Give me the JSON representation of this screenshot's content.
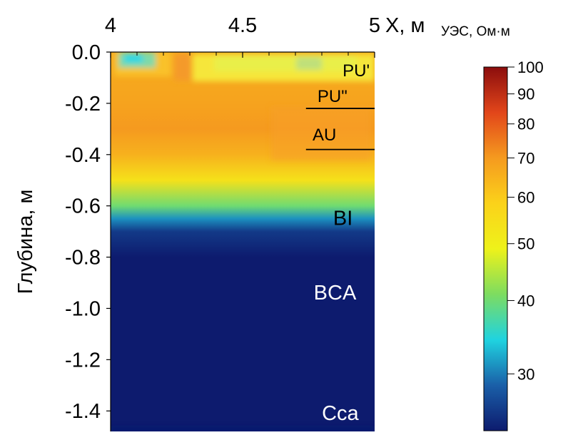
{
  "chart_data": {
    "type": "heatmap",
    "x_axis": {
      "label": "X, м",
      "range": [
        4,
        5
      ],
      "ticks": [
        4,
        4.5,
        5
      ],
      "tick_labels": [
        "4",
        "4.5",
        "5"
      ],
      "position": "top"
    },
    "y_axis": {
      "label": "Глубина, м",
      "range": [
        -1.48,
        0
      ],
      "ticks": [
        0,
        -0.2,
        -0.4,
        -0.6,
        -0.8,
        -1.0,
        -1.2,
        -1.4
      ],
      "tick_labels": [
        "0.0",
        "-0.2",
        "-0.4",
        "-0.6",
        "-0.8",
        "-1.0",
        "-1.2",
        "-1.4"
      ]
    },
    "colorbar": {
      "title": "УЭС, Ом·м",
      "scale": "log",
      "range": [
        24,
        100
      ],
      "ticks": [
        100,
        90,
        80,
        70,
        60,
        50,
        40,
        30
      ],
      "tick_labels": [
        "100",
        "90",
        "80",
        "70",
        "60",
        "50",
        "40",
        "30"
      ],
      "colors": [
        "#0d1b6e",
        "#1a5fa8",
        "#1fd3e0",
        "#7ddc60",
        "#eef21a",
        "#fbd21a",
        "#f59a1f",
        "#e2461a",
        "#8b0d0d"
      ]
    },
    "resistivity_profile": [
      {
        "depth": 0.0,
        "value": 66
      },
      {
        "depth": -0.1,
        "value": 67
      },
      {
        "depth": -0.2,
        "value": 68
      },
      {
        "depth": -0.3,
        "value": 70
      },
      {
        "depth": -0.4,
        "value": 65
      },
      {
        "depth": -0.5,
        "value": 54
      },
      {
        "depth": -0.6,
        "value": 40
      },
      {
        "depth": -0.65,
        "value": 31
      },
      {
        "depth": -0.7,
        "value": 26
      },
      {
        "depth": -0.8,
        "value": 24
      },
      {
        "depth": -1.48,
        "value": 24
      }
    ],
    "layer_boundaries": [
      -0.22,
      -0.38
    ],
    "layers": [
      {
        "label": "PU'",
        "x": 4.93,
        "depth": -0.07,
        "color": "#000000"
      },
      {
        "label": "PU\"",
        "x": 4.84,
        "depth": -0.17,
        "color": "#000000"
      },
      {
        "label": "AU",
        "x": 4.81,
        "depth": -0.32,
        "color": "#000000"
      },
      {
        "label": "BI",
        "x": 4.88,
        "depth": -0.65,
        "color": "#000000"
      },
      {
        "label": "BCA",
        "x": 4.85,
        "depth": -0.94,
        "color": "#ffffff"
      },
      {
        "label": "Cca",
        "x": 4.87,
        "depth": -1.41,
        "color": "#ffffff"
      }
    ]
  }
}
